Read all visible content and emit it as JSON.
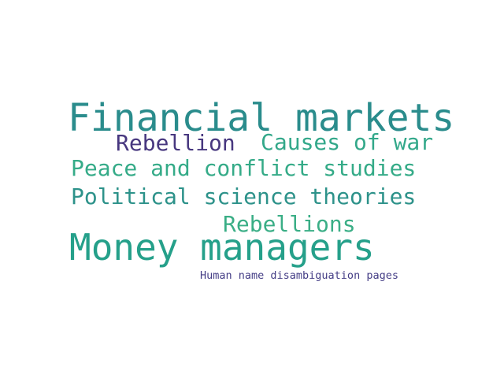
{
  "word_cloud": {
    "words": [
      {
        "text": "Financial markets",
        "color": "#2a8c8c"
      },
      {
        "text": "Rebellion",
        "color": "#47377f"
      },
      {
        "text": "Causes of war",
        "color": "#33a88a"
      },
      {
        "text": "Peace and conflict studies",
        "color": "#35ab88"
      },
      {
        "text": "Political science theories",
        "color": "#2d928a"
      },
      {
        "text": "Rebellions",
        "color": "#3aae86"
      },
      {
        "text": "Money managers",
        "color": "#25a08a"
      },
      {
        "text": "Human name disambiguation pages",
        "color": "#453e86"
      }
    ]
  }
}
